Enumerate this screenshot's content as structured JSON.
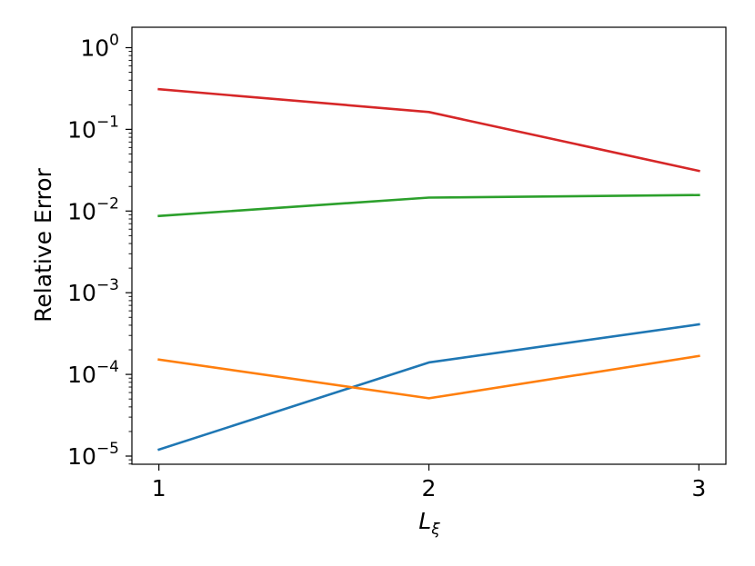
{
  "chart_data": {
    "type": "line",
    "title": "",
    "xlabel_main": "L",
    "xlabel_sub": "ξ",
    "ylabel": "Relative Error",
    "x": [
      1,
      2,
      3
    ],
    "xlim": [
      0.9,
      3.1
    ],
    "ylim_exp": [
      -5.1,
      0.25
    ],
    "yscale": "log",
    "x_tick_labels": [
      "1",
      "2",
      "3"
    ],
    "y_tick_exponents": [
      "-5",
      "-4",
      "-3",
      "-2",
      "-1",
      "0"
    ],
    "y_tick_base": "10",
    "grid": false,
    "series": [
      {
        "color": "#1f77b4",
        "values": [
          1.2e-05,
          0.00014,
          0.00041
        ]
      },
      {
        "color": "#ff7f0e",
        "values": [
          0.000152,
          5.1e-05,
          0.000168
        ]
      },
      {
        "color": "#2ca02c",
        "values": [
          0.0087,
          0.0146,
          0.0157
        ]
      },
      {
        "color": "#d62728",
        "values": [
          0.31,
          0.163,
          0.031
        ]
      }
    ]
  }
}
